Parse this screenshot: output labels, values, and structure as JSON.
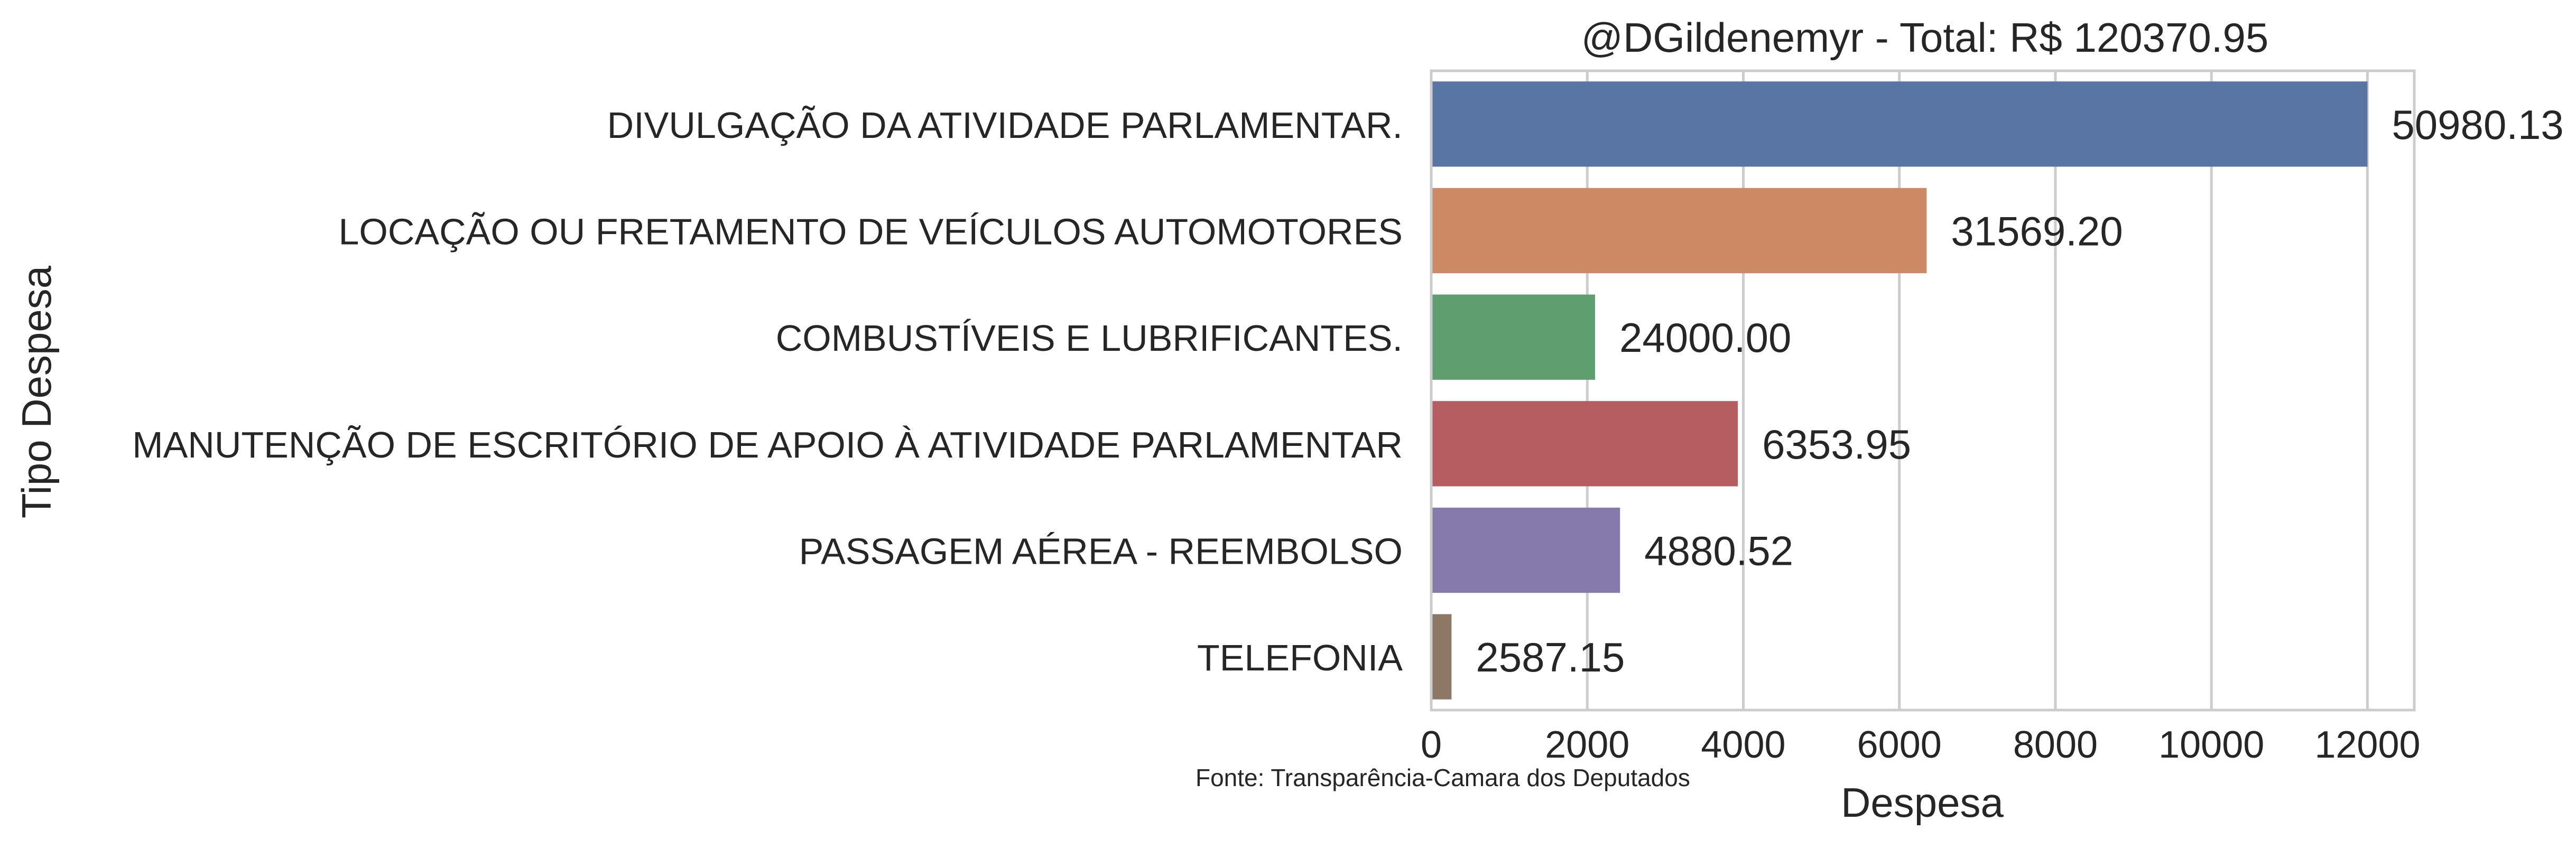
{
  "chart_data": {
    "type": "bar",
    "orientation": "horizontal",
    "title": "@DGildenemyr - Total: R$ 120370.95",
    "xlabel": "Despesa",
    "ylabel": "Tipo Despesa",
    "xlim": [
      0,
      12600
    ],
    "xticks": [
      0,
      2000,
      4000,
      6000,
      8000,
      10000,
      12000
    ],
    "grid": "vertical",
    "categories": [
      "DIVULGAÇÃO DA ATIVIDADE PARLAMENTAR.",
      "LOCAÇÃO OU FRETAMENTO DE VEÍCULOS AUTOMOTORES",
      "COMBUSTÍVEIS E LUBRIFICANTES.",
      "MANUTENÇÃO DE ESCRITÓRIO DE APOIO À ATIVIDADE PARLAMENTAR",
      "PASSAGEM AÉREA - REEMBOLSO",
      "TELEFONIA"
    ],
    "values": [
      12000,
      6350,
      2100,
      3930,
      2420,
      260
    ],
    "data_labels": [
      "50980.13",
      "31569.20",
      "24000.00",
      "6353.95",
      "4880.52",
      "2587.15"
    ],
    "colors": [
      "#5875a4",
      "#cc8963",
      "#5f9e6e",
      "#b55d60",
      "#857aab",
      "#8d7866"
    ],
    "source_note": "Fonte: Transparência-Camara dos Deputados"
  }
}
